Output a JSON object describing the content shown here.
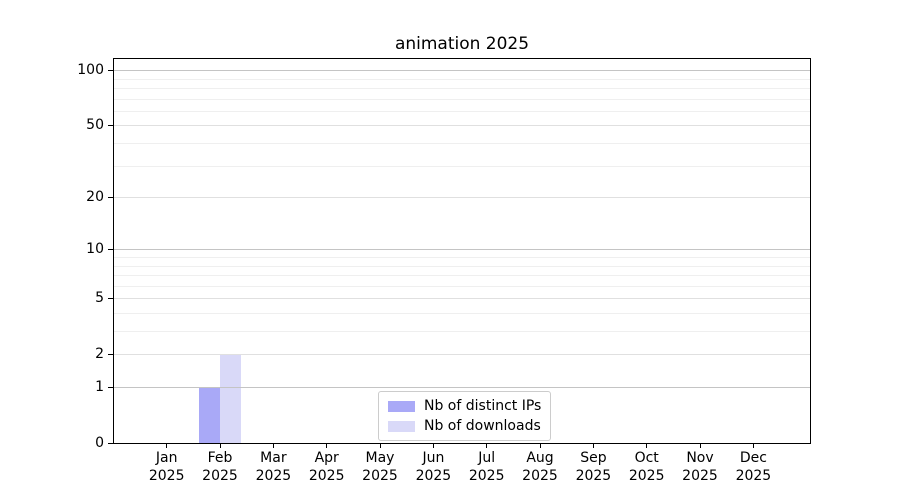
{
  "chart_data": {
    "type": "bar",
    "title": "animation 2025",
    "months": [
      "Jan",
      "Feb",
      "Mar",
      "Apr",
      "May",
      "Jun",
      "Jul",
      "Aug",
      "Sep",
      "Oct",
      "Nov",
      "Dec"
    ],
    "year": "2025",
    "categories": [
      "Jan 2025",
      "Feb 2025",
      "Mar 2025",
      "Apr 2025",
      "May 2025",
      "Jun 2025",
      "Jul 2025",
      "Aug 2025",
      "Sep 2025",
      "Oct 2025",
      "Nov 2025",
      "Dec 2025"
    ],
    "series": [
      {
        "name": "Nb of distinct IPs",
        "color": "#a9a9f7",
        "values": [
          0,
          1,
          0,
          0,
          0,
          0,
          0,
          0,
          0,
          0,
          0,
          0
        ]
      },
      {
        "name": "Nb of downloads",
        "color": "#d9d9f8",
        "values": [
          0,
          2,
          0,
          0,
          0,
          0,
          0,
          0,
          0,
          0,
          0,
          0
        ]
      }
    ],
    "yscale": "log1p",
    "y_axis": {
      "ticks": [
        0,
        1,
        2,
        5,
        10,
        20,
        50,
        100
      ],
      "decade_ticks": [
        1,
        10,
        100
      ],
      "minor_ticks": [
        3,
        4,
        6,
        7,
        8,
        9,
        30,
        40,
        60,
        70,
        80,
        90
      ],
      "ylim": [
        0,
        117
      ]
    },
    "grid": true,
    "legend": {
      "position": "lower center",
      "entries": [
        "Nb of distinct IPs",
        "Nb of downloads"
      ]
    }
  },
  "colors": {
    "bar_distinct_ips": "#a9a9f7",
    "bar_downloads": "#d9d9f8",
    "grid_decade": "#c4c4c4",
    "grid_labeled": "#e0e0e0",
    "grid_minor": "#efefef",
    "spine": "#000000",
    "background": "#ffffff"
  }
}
